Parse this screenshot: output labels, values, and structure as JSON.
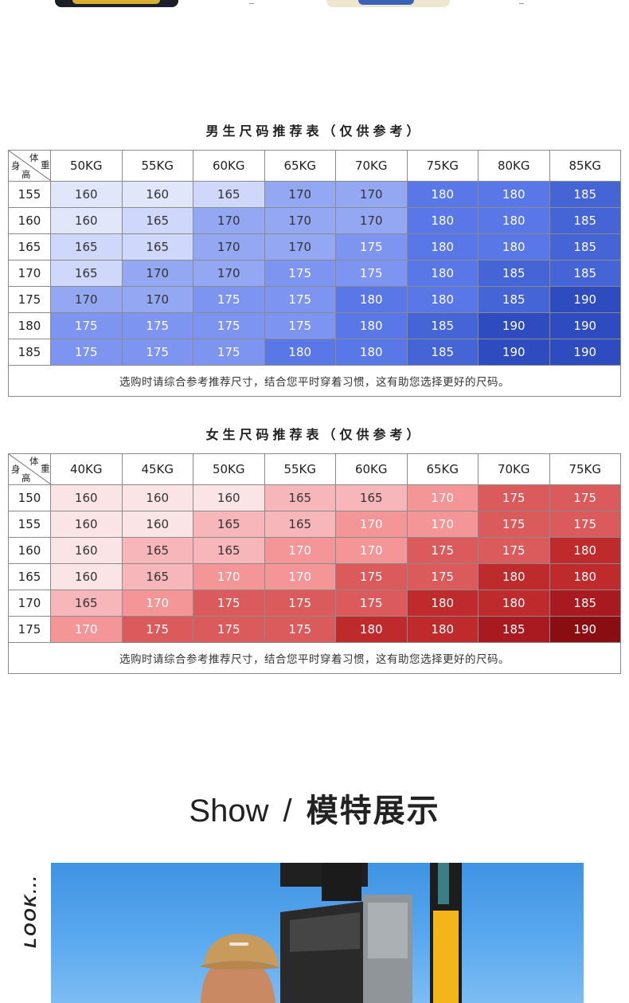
{
  "top_strip": {
    "thumbnails": [
      "product-thumbnail-dark",
      "product-thumbnail-light"
    ]
  },
  "men": {
    "title": "男生尺码推荐表（仅供参考）",
    "corner": {
      "weight": "体重",
      "height": "身高"
    },
    "columns": [
      "50KG",
      "55KG",
      "60KG",
      "65KG",
      "70KG",
      "75KG",
      "80KG",
      "85KG"
    ],
    "rows": [
      {
        "height": "155",
        "values": [
          "160",
          "160",
          "165",
          "170",
          "170",
          "180",
          "180",
          "185"
        ]
      },
      {
        "height": "160",
        "values": [
          "160",
          "165",
          "170",
          "170",
          "170",
          "180",
          "180",
          "185"
        ]
      },
      {
        "height": "165",
        "values": [
          "165",
          "165",
          "170",
          "170",
          "175",
          "180",
          "180",
          "185"
        ]
      },
      {
        "height": "170",
        "values": [
          "165",
          "170",
          "170",
          "175",
          "175",
          "180",
          "185",
          "185"
        ]
      },
      {
        "height": "175",
        "values": [
          "170",
          "170",
          "175",
          "175",
          "180",
          "180",
          "185",
          "190"
        ]
      },
      {
        "height": "180",
        "values": [
          "175",
          "175",
          "175",
          "175",
          "180",
          "185",
          "190",
          "190"
        ]
      },
      {
        "height": "185",
        "values": [
          "175",
          "175",
          "175",
          "180",
          "180",
          "185",
          "190",
          "190"
        ]
      }
    ],
    "note": "选购时请综合参考推荐尺寸，结合您平时穿着习惯，这有助您选择更好的尺码。",
    "palette": {
      "160": {
        "bg": "#e1e6fb",
        "fg": "#333333"
      },
      "165": {
        "bg": "#cfd8fa",
        "fg": "#333333"
      },
      "170": {
        "bg": "#93a7f3",
        "fg": "#333333"
      },
      "175": {
        "bg": "#7d94f0",
        "fg": "#ffffff"
      },
      "180": {
        "bg": "#5977e6",
        "fg": "#ffffff"
      },
      "185": {
        "bg": "#4564d6",
        "fg": "#ffffff"
      },
      "190": {
        "bg": "#2e4cc0",
        "fg": "#ffffff"
      }
    }
  },
  "women": {
    "title": "女生尺码推荐表（仅供参考）",
    "corner": {
      "weight": "体重",
      "height": "身高"
    },
    "columns": [
      "40KG",
      "45KG",
      "50KG",
      "55KG",
      "60KG",
      "65KG",
      "70KG",
      "75KG"
    ],
    "rows": [
      {
        "height": "150",
        "values": [
          "160",
          "160",
          "160",
          "165",
          "165",
          "170",
          "175",
          "175"
        ]
      },
      {
        "height": "155",
        "values": [
          "160",
          "160",
          "165",
          "165",
          "170",
          "170",
          "175",
          "175"
        ]
      },
      {
        "height": "160",
        "values": [
          "160",
          "165",
          "165",
          "170",
          "170",
          "175",
          "175",
          "180"
        ]
      },
      {
        "height": "165",
        "values": [
          "160",
          "165",
          "170",
          "170",
          "175",
          "175",
          "180",
          "180"
        ]
      },
      {
        "height": "170",
        "values": [
          "165",
          "170",
          "175",
          "175",
          "175",
          "180",
          "180",
          "185"
        ]
      },
      {
        "height": "175",
        "values": [
          "170",
          "175",
          "175",
          "175",
          "180",
          "180",
          "185",
          "190"
        ]
      }
    ],
    "note": "选购时请综合参考推荐尺寸，结合您平时穿着习惯，这有助您选择更好的尺码。",
    "palette": {
      "160": {
        "bg": "#fbe4e6",
        "fg": "#333333"
      },
      "165": {
        "bg": "#f7b6ba",
        "fg": "#333333"
      },
      "170": {
        "bg": "#f49597",
        "fg": "#ffffff"
      },
      "175": {
        "bg": "#db5a5c",
        "fg": "#ffffff"
      },
      "180": {
        "bg": "#bf2a2d",
        "fg": "#ffffff"
      },
      "185": {
        "bg": "#a81a1f",
        "fg": "#ffffff"
      },
      "190": {
        "bg": "#8a0d12",
        "fg": "#ffffff"
      }
    }
  },
  "show": {
    "en": "Show",
    "sep": "/",
    "cn": "模特展示"
  },
  "look_label": "LOOK..."
}
